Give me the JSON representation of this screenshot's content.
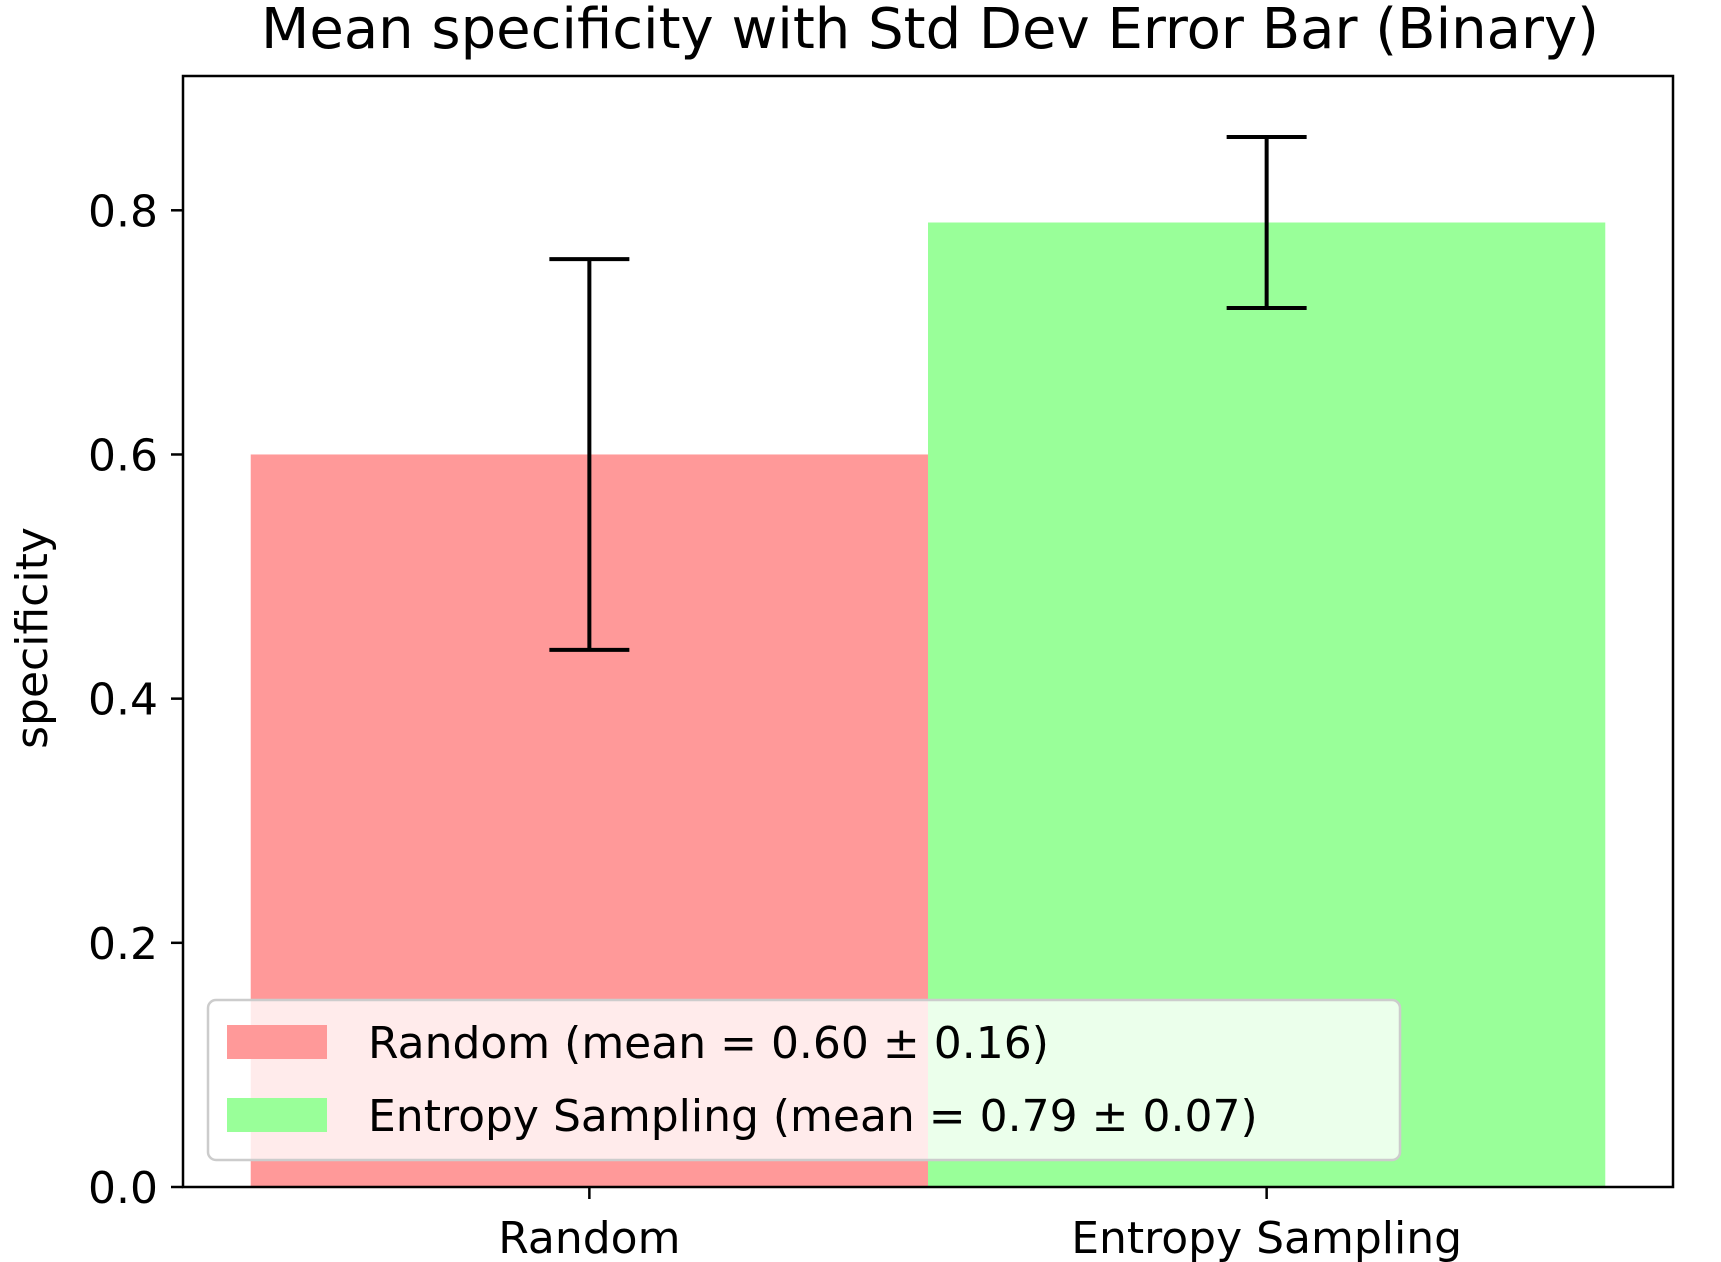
{
  "chart_data": {
    "type": "bar",
    "title": "Mean specificity with Std Dev Error Bar (Binary)",
    "xlabel": "",
    "ylabel": "specificity",
    "categories": [
      "Random",
      "Entropy Sampling"
    ],
    "values": [
      0.6,
      0.79
    ],
    "errors": [
      0.16,
      0.07
    ],
    "colors": [
      "#ff9999",
      "#99ff99"
    ],
    "ylim": [
      0,
      0.91
    ],
    "yticks": [
      0.0,
      0.2,
      0.4,
      0.6,
      0.8
    ],
    "ytick_labels": [
      "0.0",
      "0.2",
      "0.4",
      "0.6",
      "0.8"
    ],
    "grid": false,
    "legend": {
      "placement": "lower-left",
      "entries": [
        {
          "label": "Random (mean = 0.60 ± 0.16)",
          "color": "#ff9999"
        },
        {
          "label": "Entropy Sampling (mean = 0.79 ± 0.07)",
          "color": "#99ff99"
        }
      ]
    }
  }
}
